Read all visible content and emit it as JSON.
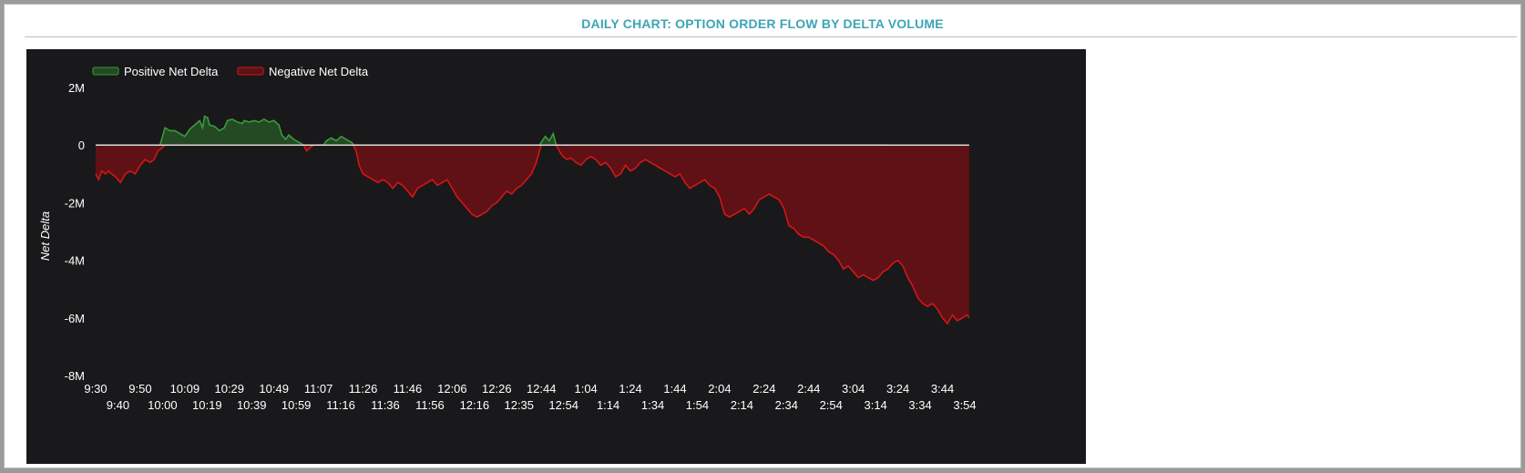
{
  "panel": {
    "title": "DAILY CHART: OPTION ORDER FLOW BY DELTA VOLUME"
  },
  "colors": {
    "title": "#3da5b5",
    "background": "#19191b",
    "positive_line": "#3a9a3a",
    "positive_fill": "#234a23",
    "negative_line": "#d41515",
    "negative_fill": "#5f1115",
    "zero_line": "#d8d8d8"
  },
  "chart_data": {
    "type": "area",
    "title": "",
    "xlabel": "",
    "ylabel": "Net Delta",
    "ylim": [
      -8000000,
      2000000
    ],
    "y_ticks": [
      2000000,
      0,
      -2000000,
      -4000000,
      -6000000,
      -8000000
    ],
    "y_tick_labels": [
      "2M",
      "0",
      "-2M",
      "-4M",
      "-6M",
      "-8M"
    ],
    "x_tick_labels": [
      "9:30",
      "9:40",
      "9:50",
      "10:00",
      "10:09",
      "10:19",
      "10:29",
      "10:39",
      "10:49",
      "10:59",
      "11:07",
      "11:16",
      "11:26",
      "11:36",
      "11:46",
      "11:56",
      "12:06",
      "12:16",
      "12:26",
      "12:35",
      "12:44",
      "12:54",
      "1:04",
      "1:14",
      "1:24",
      "1:34",
      "1:44",
      "1:54",
      "2:04",
      "2:14",
      "2:24",
      "2:34",
      "2:44",
      "2:54",
      "3:04",
      "3:14",
      "3:24",
      "3:34",
      "3:44",
      "3:54"
    ],
    "grid": false,
    "legend_position": "top-left",
    "series": [
      {
        "name": "Positive Net Delta",
        "points": [
          [
            0,
            0
          ],
          [
            6.5,
            0
          ],
          [
            7,
            600000
          ],
          [
            7.5,
            500000
          ],
          [
            8,
            500000
          ],
          [
            8.5,
            400000
          ],
          [
            9,
            300000
          ],
          [
            9.5,
            550000
          ],
          [
            10,
            700000
          ],
          [
            10.5,
            850000
          ],
          [
            10.8,
            600000
          ],
          [
            11,
            1000000
          ],
          [
            11.3,
            950000
          ],
          [
            11.5,
            700000
          ],
          [
            12,
            650000
          ],
          [
            12.5,
            500000
          ],
          [
            13,
            600000
          ],
          [
            13.3,
            850000
          ],
          [
            13.8,
            900000
          ],
          [
            14.3,
            800000
          ],
          [
            14.8,
            750000
          ],
          [
            15,
            850000
          ],
          [
            15.5,
            800000
          ],
          [
            16,
            850000
          ],
          [
            16.5,
            800000
          ],
          [
            17,
            900000
          ],
          [
            17.5,
            800000
          ],
          [
            18,
            850000
          ],
          [
            18.5,
            700000
          ],
          [
            18.8,
            350000
          ],
          [
            19.2,
            200000
          ],
          [
            19.5,
            350000
          ],
          [
            20,
            200000
          ],
          [
            20.5,
            100000
          ],
          [
            21,
            0
          ],
          [
            23,
            0
          ],
          [
            23.3,
            150000
          ],
          [
            23.8,
            250000
          ],
          [
            24.3,
            150000
          ],
          [
            24.8,
            300000
          ],
          [
            25.3,
            200000
          ],
          [
            25.8,
            100000
          ],
          [
            26.1,
            0
          ],
          [
            44.8,
            0
          ],
          [
            45,
            100000
          ],
          [
            45.4,
            300000
          ],
          [
            45.8,
            150000
          ],
          [
            46.2,
            400000
          ],
          [
            46.5,
            0
          ],
          [
            80,
            0
          ]
        ]
      },
      {
        "name": "Negative Net Delta",
        "points": [
          [
            0,
            -1000000
          ],
          [
            0.3,
            -1200000
          ],
          [
            0.6,
            -900000
          ],
          [
            1.0,
            -1000000
          ],
          [
            1.3,
            -900000
          ],
          [
            1.6,
            -1000000
          ],
          [
            2,
            -1100000
          ],
          [
            2.5,
            -1300000
          ],
          [
            3,
            -1000000
          ],
          [
            3.5,
            -900000
          ],
          [
            4,
            -1000000
          ],
          [
            4.5,
            -700000
          ],
          [
            5,
            -500000
          ],
          [
            5.5,
            -600000
          ],
          [
            5.9,
            -500000
          ],
          [
            6.3,
            -200000
          ],
          [
            6.7,
            -100000
          ],
          [
            7,
            0
          ],
          [
            21,
            0
          ],
          [
            21.3,
            -200000
          ],
          [
            21.6,
            -100000
          ],
          [
            22,
            0
          ],
          [
            26,
            0
          ],
          [
            26.3,
            -200000
          ],
          [
            26.6,
            -700000
          ],
          [
            27,
            -1000000
          ],
          [
            27.5,
            -1100000
          ],
          [
            28,
            -1200000
          ],
          [
            28.5,
            -1300000
          ],
          [
            29,
            -1200000
          ],
          [
            29.5,
            -1300000
          ],
          [
            30,
            -1500000
          ],
          [
            30.5,
            -1300000
          ],
          [
            31,
            -1400000
          ],
          [
            31.5,
            -1600000
          ],
          [
            32,
            -1800000
          ],
          [
            32.5,
            -1500000
          ],
          [
            33,
            -1400000
          ],
          [
            33.5,
            -1300000
          ],
          [
            34,
            -1200000
          ],
          [
            34.5,
            -1400000
          ],
          [
            35,
            -1300000
          ],
          [
            35.5,
            -1200000
          ],
          [
            36,
            -1500000
          ],
          [
            36.5,
            -1800000
          ],
          [
            37,
            -2000000
          ],
          [
            37.5,
            -2200000
          ],
          [
            38,
            -2400000
          ],
          [
            38.5,
            -2500000
          ],
          [
            39,
            -2400000
          ],
          [
            39.5,
            -2300000
          ],
          [
            40,
            -2100000
          ],
          [
            40.5,
            -2000000
          ],
          [
            41,
            -1800000
          ],
          [
            41.5,
            -1600000
          ],
          [
            42,
            -1700000
          ],
          [
            42.5,
            -1500000
          ],
          [
            43,
            -1400000
          ],
          [
            43.5,
            -1200000
          ],
          [
            44,
            -1000000
          ],
          [
            44.5,
            -600000
          ],
          [
            44.8,
            -200000
          ],
          [
            45,
            0
          ],
          [
            46.5,
            0
          ],
          [
            46.8,
            -200000
          ],
          [
            47.2,
            -400000
          ],
          [
            47.6,
            -500000
          ],
          [
            48,
            -450000
          ],
          [
            48.5,
            -600000
          ],
          [
            49,
            -700000
          ],
          [
            49.5,
            -500000
          ],
          [
            50,
            -400000
          ],
          [
            50.5,
            -500000
          ],
          [
            51,
            -700000
          ],
          [
            51.5,
            -600000
          ],
          [
            52,
            -800000
          ],
          [
            52.5,
            -1100000
          ],
          [
            53,
            -1000000
          ],
          [
            53.5,
            -700000
          ],
          [
            54,
            -900000
          ],
          [
            54.5,
            -800000
          ],
          [
            55,
            -600000
          ],
          [
            55.5,
            -500000
          ],
          [
            56,
            -600000
          ],
          [
            56.5,
            -700000
          ],
          [
            57,
            -800000
          ],
          [
            57.5,
            -900000
          ],
          [
            58,
            -1000000
          ],
          [
            58.5,
            -1100000
          ],
          [
            59,
            -1000000
          ],
          [
            59.5,
            -1300000
          ],
          [
            60,
            -1500000
          ],
          [
            60.5,
            -1400000
          ],
          [
            61,
            -1300000
          ],
          [
            61.5,
            -1200000
          ],
          [
            62,
            -1400000
          ],
          [
            62.5,
            -1500000
          ],
          [
            63,
            -1800000
          ],
          [
            63.5,
            -2400000
          ],
          [
            64,
            -2500000
          ],
          [
            64.5,
            -2400000
          ],
          [
            65,
            -2300000
          ],
          [
            65.5,
            -2200000
          ],
          [
            66,
            -2400000
          ],
          [
            66.5,
            -2200000
          ],
          [
            67,
            -1900000
          ],
          [
            67.5,
            -1800000
          ],
          [
            68,
            -1700000
          ],
          [
            68.5,
            -1800000
          ],
          [
            69,
            -1900000
          ],
          [
            69.5,
            -2200000
          ],
          [
            70,
            -2800000
          ],
          [
            70.5,
            -2900000
          ],
          [
            71,
            -3100000
          ],
          [
            71.5,
            -3200000
          ],
          [
            72,
            -3200000
          ],
          [
            72.5,
            -3300000
          ],
          [
            73,
            -3400000
          ],
          [
            73.5,
            -3500000
          ],
          [
            74,
            -3700000
          ],
          [
            74.5,
            -3800000
          ],
          [
            75,
            -4000000
          ],
          [
            75.5,
            -4300000
          ],
          [
            76,
            -4200000
          ],
          [
            76.5,
            -4400000
          ],
          [
            77,
            -4600000
          ],
          [
            77.5,
            -4500000
          ],
          [
            78,
            -4600000
          ],
          [
            78.5,
            -4700000
          ],
          [
            79,
            -4600000
          ],
          [
            79.5,
            -4400000
          ],
          [
            80,
            -4300000
          ],
          [
            80.5,
            -4100000
          ],
          [
            81,
            -4000000
          ],
          [
            81.5,
            -4200000
          ],
          [
            82,
            -4600000
          ],
          [
            82.5,
            -4900000
          ],
          [
            83,
            -5300000
          ],
          [
            83.5,
            -5500000
          ],
          [
            84,
            -5600000
          ],
          [
            84.5,
            -5500000
          ],
          [
            85,
            -5700000
          ],
          [
            85.5,
            -6000000
          ],
          [
            86,
            -6200000
          ],
          [
            86.5,
            -5900000
          ],
          [
            87,
            -6100000
          ],
          [
            87.5,
            -6000000
          ],
          [
            88,
            -5900000
          ],
          [
            88.2,
            -6000000
          ]
        ]
      }
    ]
  }
}
